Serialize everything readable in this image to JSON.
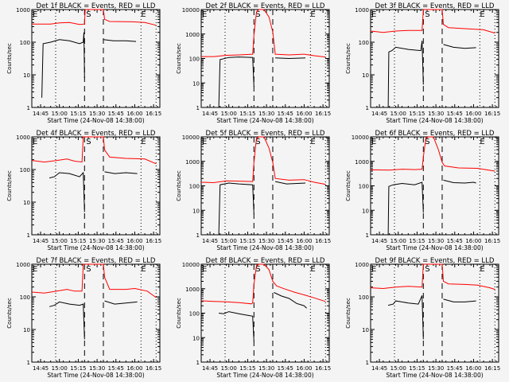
{
  "chart_data": {
    "type": "line",
    "layout": "3x3 grid of panels",
    "xlabel": "Start Time (24-Nov-08 14:38:00)",
    "ylabel": "Counts/sec",
    "x_range_minutes_after_start": [
      0,
      102
    ],
    "x_ticks": [
      {
        "label": "14:45",
        "t": 7
      },
      {
        "label": "15:00",
        "t": 22
      },
      {
        "label": "15:15",
        "t": 37
      },
      {
        "label": "15:30",
        "t": 52
      },
      {
        "label": "15:45",
        "t": 67
      },
      {
        "label": "16:00",
        "t": 82
      },
      {
        "label": "16:15",
        "t": 97
      }
    ],
    "y_scale": "log",
    "markers": {
      "dotted_times": [
        19,
        87,
        99
      ],
      "dashed_times": [
        42,
        57
      ],
      "labels": [
        "E",
        "S",
        "E"
      ]
    },
    "series_colors": {
      "events": "#000000",
      "lld": "#ff0000"
    },
    "panels": [
      {
        "title": "Det 1f BLACK = Events, RED = LLD",
        "ylim": [
          1,
          1000
        ],
        "y_ticks": [
          "1",
          "10",
          "100",
          "1000"
        ],
        "lld": [
          [
            0,
            360
          ],
          [
            15,
            360
          ],
          [
            22,
            390
          ],
          [
            30,
            400
          ],
          [
            38,
            350
          ],
          [
            42,
            360
          ],
          [
            42.5,
            1000
          ],
          [
            57,
            1000
          ],
          [
            58,
            500
          ],
          [
            62,
            430
          ],
          [
            80,
            420
          ],
          [
            90,
            400
          ],
          [
            99,
            330
          ]
        ],
        "events": [
          [
            8,
            2
          ],
          [
            8.5,
            14
          ],
          [
            9,
            90
          ],
          [
            15,
            100
          ],
          [
            22,
            120
          ],
          [
            30,
            110
          ],
          [
            38,
            90
          ],
          [
            41,
            100
          ],
          [
            41.5,
            200
          ],
          [
            42,
            8
          ],
          [
            42,
            null
          ],
          [
            57,
            120
          ],
          [
            65,
            110
          ],
          [
            75,
            110
          ],
          [
            83,
            105
          ]
        ]
      },
      {
        "title": "Det 2f BLACK = Events, RED = LLD",
        "ylim": [
          1,
          10000
        ],
        "y_ticks": [
          "1",
          "10",
          "100",
          "1000",
          "10000"
        ],
        "lld": [
          [
            0,
            120
          ],
          [
            10,
            120
          ],
          [
            20,
            135
          ],
          [
            30,
            140
          ],
          [
            41,
            150
          ],
          [
            42,
            900
          ],
          [
            44,
            8000
          ],
          [
            46,
            13000
          ],
          [
            50,
            12000
          ],
          [
            54,
            5000
          ],
          [
            57,
            1200
          ],
          [
            59,
            150
          ],
          [
            70,
            140
          ],
          [
            82,
            150
          ],
          [
            90,
            130
          ],
          [
            99,
            115
          ]
        ],
        "events": [
          [
            14,
            1
          ],
          [
            14.5,
            10
          ],
          [
            15,
            90
          ],
          [
            22,
            110
          ],
          [
            30,
            115
          ],
          [
            41,
            110
          ],
          [
            42,
            7
          ],
          [
            42,
            null
          ],
          [
            59,
            105
          ],
          [
            70,
            100
          ],
          [
            83,
            105
          ]
        ]
      },
      {
        "title": "Det 3f BLACK = Events, RED = LLD",
        "ylim": [
          1,
          1000
        ],
        "y_ticks": [
          "1",
          "10",
          "100",
          "1000"
        ],
        "lld": [
          [
            0,
            220
          ],
          [
            10,
            200
          ],
          [
            20,
            220
          ],
          [
            30,
            230
          ],
          [
            41,
            230
          ],
          [
            42,
            1000
          ],
          [
            57,
            1000
          ],
          [
            58,
            350
          ],
          [
            62,
            280
          ],
          [
            75,
            260
          ],
          [
            90,
            240
          ],
          [
            99,
            190
          ]
        ],
        "events": [
          [
            14,
            1
          ],
          [
            14.5,
            50
          ],
          [
            17,
            55
          ],
          [
            20,
            70
          ],
          [
            30,
            60
          ],
          [
            40,
            55
          ],
          [
            41,
            110
          ],
          [
            42,
            5
          ],
          [
            42,
            null
          ],
          [
            58,
            85
          ],
          [
            66,
            70
          ],
          [
            75,
            65
          ],
          [
            84,
            68
          ]
        ]
      },
      {
        "title": "Det 4f BLACK = Events, RED = LLD",
        "ylim": [
          1,
          1000
        ],
        "y_ticks": [
          "1",
          "10",
          "100",
          "1000"
        ],
        "lld": [
          [
            0,
            190
          ],
          [
            10,
            170
          ],
          [
            20,
            190
          ],
          [
            28,
            210
          ],
          [
            34,
            180
          ],
          [
            40,
            170
          ],
          [
            41,
            1000
          ],
          [
            57,
            1000
          ],
          [
            58,
            400
          ],
          [
            62,
            240
          ],
          [
            75,
            220
          ],
          [
            90,
            210
          ],
          [
            99,
            150
          ]
        ],
        "events": [
          [
            14,
            55
          ],
          [
            18,
            60
          ],
          [
            22,
            80
          ],
          [
            30,
            75
          ],
          [
            38,
            60
          ],
          [
            41,
            80
          ],
          [
            42,
            5
          ],
          [
            42,
            null
          ],
          [
            58,
            85
          ],
          [
            66,
            75
          ],
          [
            75,
            80
          ],
          [
            84,
            75
          ]
        ]
      },
      {
        "title": "Det 5f BLACK = Events, RED = LLD",
        "ylim": [
          1,
          10000
        ],
        "y_ticks": [
          "1",
          "10",
          "100",
          "1000",
          "10000"
        ],
        "lld": [
          [
            0,
            140
          ],
          [
            10,
            135
          ],
          [
            20,
            160
          ],
          [
            30,
            155
          ],
          [
            41,
            150
          ],
          [
            42,
            900
          ],
          [
            44,
            9000
          ],
          [
            46,
            13000
          ],
          [
            50,
            12000
          ],
          [
            54,
            3500
          ],
          [
            57,
            900
          ],
          [
            59,
            200
          ],
          [
            70,
            170
          ],
          [
            82,
            180
          ],
          [
            90,
            140
          ],
          [
            99,
            115
          ]
        ],
        "events": [
          [
            14,
            1
          ],
          [
            14.5,
            10
          ],
          [
            15,
            110
          ],
          [
            22,
            130
          ],
          [
            30,
            120
          ],
          [
            41,
            110
          ],
          [
            42,
            7
          ],
          [
            42,
            null
          ],
          [
            59,
            150
          ],
          [
            68,
            120
          ],
          [
            83,
            130
          ]
        ]
      },
      {
        "title": "Det 6f BLACK = Events, RED = LLD",
        "ylim": [
          1,
          10000
        ],
        "y_ticks": [
          "1",
          "10",
          "100",
          "1000",
          "10000"
        ],
        "lld": [
          [
            0,
            450
          ],
          [
            15,
            440
          ],
          [
            25,
            480
          ],
          [
            35,
            460
          ],
          [
            41,
            480
          ],
          [
            42,
            1500
          ],
          [
            44,
            9000
          ],
          [
            46,
            13000
          ],
          [
            50,
            12000
          ],
          [
            54,
            3000
          ],
          [
            57,
            900
          ],
          [
            59,
            650
          ],
          [
            70,
            540
          ],
          [
            85,
            520
          ],
          [
            99,
            400
          ]
        ],
        "events": [
          [
            14,
            1
          ],
          [
            14.5,
            95
          ],
          [
            18,
            110
          ],
          [
            25,
            125
          ],
          [
            35,
            110
          ],
          [
            41,
            140
          ],
          [
            42,
            8
          ],
          [
            42,
            null
          ],
          [
            58,
            170
          ],
          [
            66,
            135
          ],
          [
            75,
            130
          ],
          [
            82,
            140
          ],
          [
            84,
            130
          ]
        ]
      },
      {
        "title": "Det 7f BLACK = Events, RED = LLD",
        "ylim": [
          1,
          1000
        ],
        "y_ticks": [
          "1",
          "10",
          "100",
          "1000"
        ],
        "lld": [
          [
            0,
            140
          ],
          [
            10,
            130
          ],
          [
            20,
            150
          ],
          [
            28,
            170
          ],
          [
            34,
            150
          ],
          [
            40,
            150
          ],
          [
            41,
            1000
          ],
          [
            57,
            1000
          ],
          [
            58,
            400
          ],
          [
            62,
            170
          ],
          [
            75,
            170
          ],
          [
            82,
            180
          ],
          [
            92,
            150
          ],
          [
            99,
            95
          ]
        ],
        "events": [
          [
            14,
            50
          ],
          [
            18,
            55
          ],
          [
            22,
            70
          ],
          [
            30,
            60
          ],
          [
            38,
            55
          ],
          [
            41,
            60
          ],
          [
            42,
            5
          ],
          [
            42,
            null
          ],
          [
            58,
            75
          ],
          [
            66,
            60
          ],
          [
            75,
            65
          ],
          [
            84,
            70
          ]
        ]
      },
      {
        "title": "Det 8f BLACK = Events, RED = LLD",
        "ylim": [
          1,
          10000
        ],
        "y_ticks": [
          "1",
          "10",
          "100",
          "1000",
          "10000"
        ],
        "lld": [
          [
            0,
            320
          ],
          [
            10,
            300
          ],
          [
            20,
            290
          ],
          [
            30,
            270
          ],
          [
            40,
            240
          ],
          [
            41,
            260
          ],
          [
            42,
            1500
          ],
          [
            44,
            9000
          ],
          [
            46,
            13000
          ],
          [
            50,
            12000
          ],
          [
            54,
            6000
          ],
          [
            57,
            2000
          ],
          [
            60,
            1300
          ],
          [
            66,
            1000
          ],
          [
            75,
            700
          ],
          [
            82,
            560
          ],
          [
            90,
            420
          ],
          [
            99,
            300
          ]
        ],
        "events": [
          [
            14,
            100
          ],
          [
            18,
            95
          ],
          [
            22,
            115
          ],
          [
            30,
            95
          ],
          [
            38,
            80
          ],
          [
            41,
            75
          ],
          [
            42,
            7
          ],
          [
            42,
            null
          ],
          [
            58,
            700
          ],
          [
            64,
            500
          ],
          [
            70,
            400
          ],
          [
            76,
            250
          ],
          [
            82,
            200
          ],
          [
            84,
            160
          ]
        ]
      },
      {
        "title": "Det 9f BLACK = Events, RED = LLD",
        "ylim": [
          1,
          1000
        ],
        "y_ticks": [
          "1",
          "10",
          "100",
          "1000"
        ],
        "lld": [
          [
            0,
            190
          ],
          [
            10,
            180
          ],
          [
            20,
            200
          ],
          [
            30,
            210
          ],
          [
            41,
            200
          ],
          [
            42,
            1000
          ],
          [
            57,
            1000
          ],
          [
            58,
            300
          ],
          [
            62,
            250
          ],
          [
            75,
            240
          ],
          [
            85,
            230
          ],
          [
            95,
            190
          ],
          [
            99,
            170
          ]
        ],
        "events": [
          [
            14,
            55
          ],
          [
            18,
            60
          ],
          [
            20,
            75
          ],
          [
            30,
            65
          ],
          [
            38,
            60
          ],
          [
            41,
            110
          ],
          [
            42,
            5
          ],
          [
            42,
            null
          ],
          [
            58,
            85
          ],
          [
            66,
            70
          ],
          [
            75,
            70
          ],
          [
            84,
            75
          ]
        ]
      }
    ]
  }
}
